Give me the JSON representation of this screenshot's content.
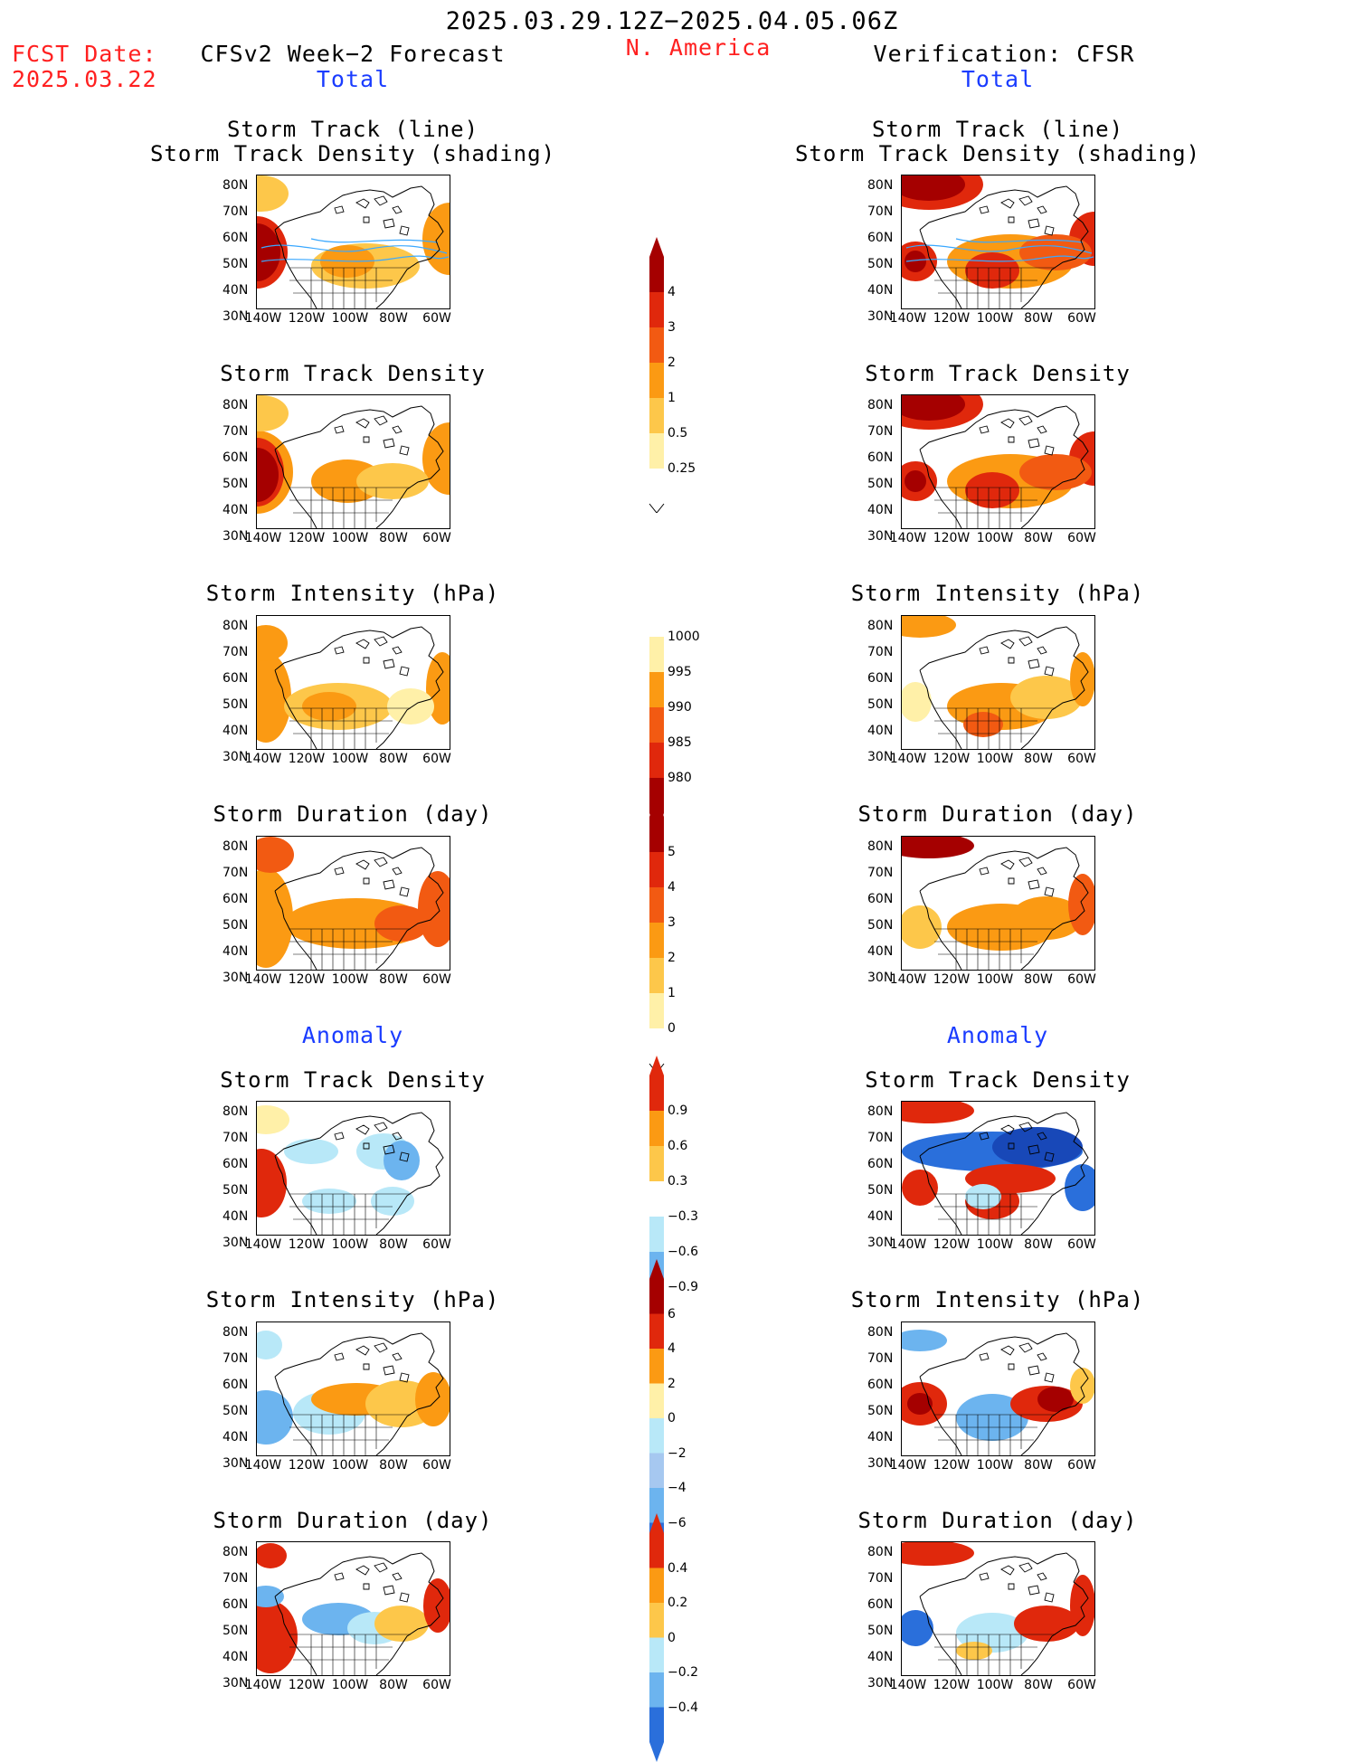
{
  "header": {
    "period": "2025.03.29.12Z−2025.04.05.06Z",
    "fcst_date_label": "FCST Date:",
    "fcst_date_value": "2025.03.22",
    "left_title": "CFSv2 Week−2 Forecast",
    "region": "N. America",
    "right_title": "Verification: CFSR",
    "total_label": "Total",
    "anomaly_label": "Anomaly"
  },
  "panel_titles": {
    "track_line": "Storm Track (line)",
    "track_density_shading": "Storm Track Density (shading)",
    "track_density": "Storm Track Density",
    "intensity": "Storm Intensity (hPa)",
    "duration": "Storm Duration (day)"
  },
  "axes": {
    "lat_labels": [
      "80N",
      "70N",
      "60N",
      "50N",
      "40N",
      "30N"
    ],
    "lon_labels": [
      "140W",
      "120W",
      "100W",
      "80W",
      "60W"
    ]
  },
  "colorbars": {
    "density_total": [
      "4",
      "3",
      "2",
      "1",
      "0.5",
      "0.25"
    ],
    "intensity_total": [
      "1000",
      "995",
      "990",
      "985",
      "980"
    ],
    "duration_total": [
      "5",
      "4",
      "3",
      "2",
      "1",
      "0"
    ],
    "density_anom": [
      "0.9",
      "0.6",
      "0.3",
      "−0.3",
      "−0.6",
      "−0.9"
    ],
    "intensity_anom": [
      "6",
      "4",
      "2",
      "0",
      "−2",
      "−4",
      "−6"
    ],
    "duration_anom": [
      "0.4",
      "0.2",
      "0",
      "−0.2",
      "−0.4"
    ]
  },
  "colors": {
    "dark_red": "#a50000",
    "red": "#e0280c",
    "orange_red": "#f25a12",
    "orange": "#fb9a13",
    "light_orange": "#fdc74a",
    "pale_yellow": "#fff0a8",
    "light_blue": "#b8e8f8",
    "mid_blue": "#6cb4ef",
    "blue": "#2a6fdb",
    "dark_blue": "#1848b8"
  }
}
